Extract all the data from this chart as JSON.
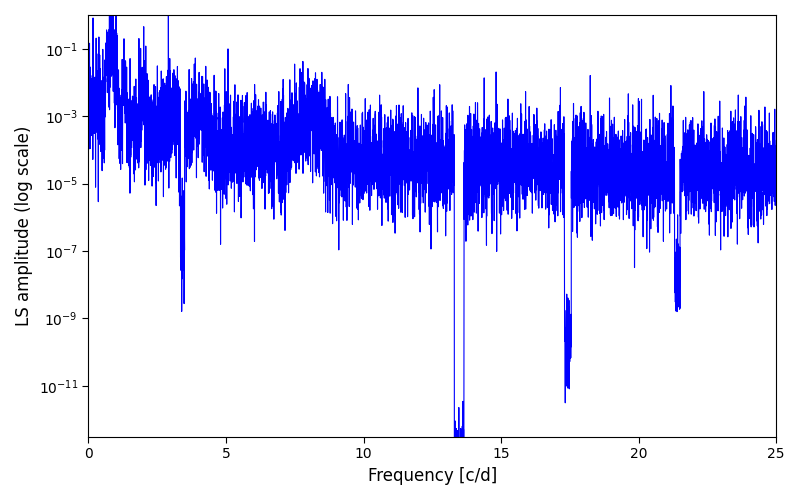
{
  "ylabel": "LS amplitude (log scale)",
  "xlabel": "Frequency [c/d]",
  "xlim": [
    0,
    25
  ],
  "ylim_low": 3e-13,
  "ylim_high": 1.0,
  "line_color": "#0000ff",
  "line_width": 0.8,
  "yscale": "log",
  "yticks": [
    1e-11,
    1e-09,
    1e-07,
    1e-05,
    0.001,
    0.1
  ],
  "xticks": [
    0,
    5,
    10,
    15,
    20,
    25
  ],
  "figsize": [
    8.0,
    5.0
  ],
  "dpi": 100,
  "n_points": 6000,
  "freq_max": 25.0,
  "seed": 17
}
